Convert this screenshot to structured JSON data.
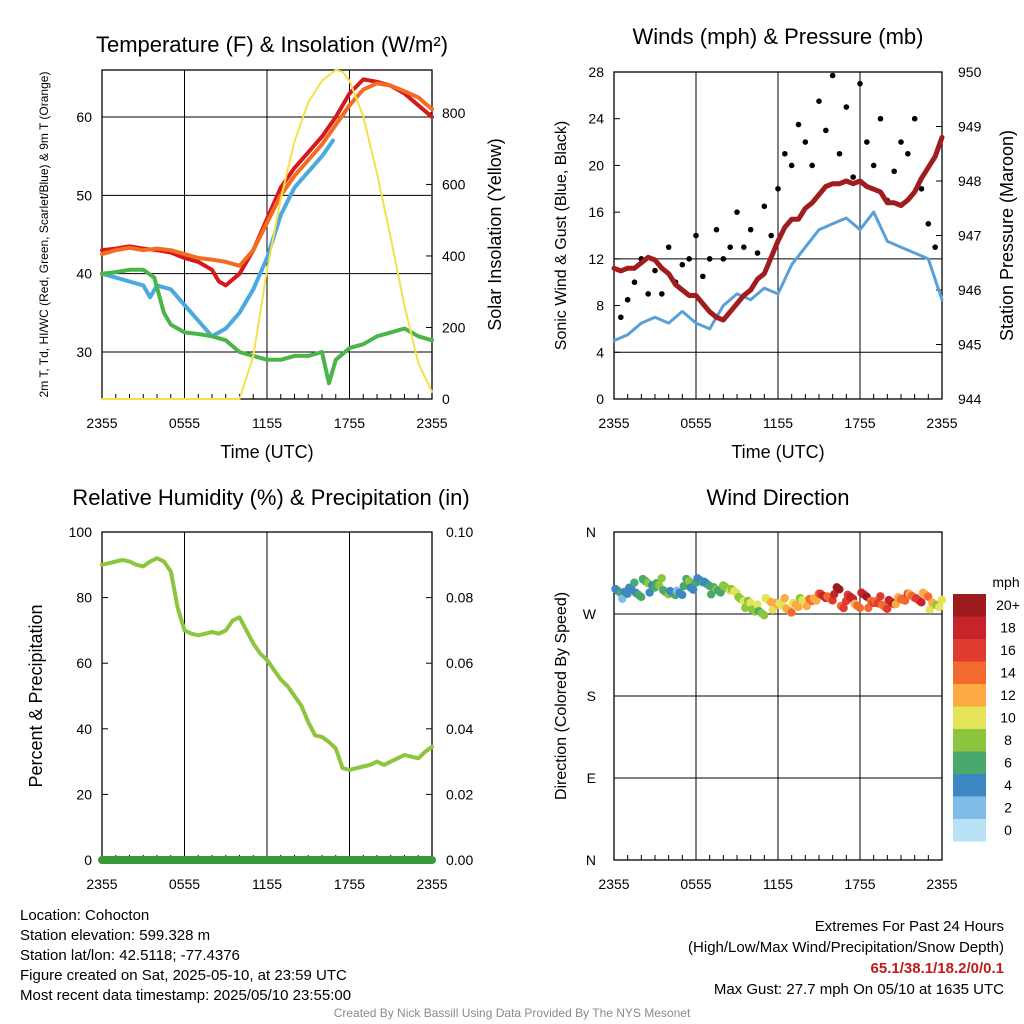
{
  "footer": {
    "location": "Location: Cohocton",
    "elevation": "Station elevation: 599.328 m",
    "latlon": "Station lat/lon: 42.5118; -77.4376",
    "created": "Figure created on Sat, 2025-05-10, at 23:59 UTC",
    "recent": "Most recent data timestamp: 2025/05/10 23:55:00",
    "extremes_title": "Extremes For Past 24 Hours",
    "extremes_sub": "(High/Low/Max Wind/Precipitation/Snow Depth)",
    "extremes_values": "65.1/38.1/18.2/0/0.1",
    "max_gust": "Max Gust: 27.7 mph On 05/10 at 1635 UTC",
    "credit": "Created By Nick Bassill Using Data Provided By The NYS Mesonet"
  },
  "colors": {
    "temp": "#d7191c",
    "wc": "#f26d21",
    "dew": "#4aa9e0",
    "rh_green": "#4cb548",
    "solar": "#f5e04b",
    "wind": "#5aa0d8",
    "gust": "#000000",
    "pressure": "#a11d1d",
    "rh": "#8cc63f",
    "precip": "#3a9a3a",
    "grid": "#000000"
  },
  "chart_data": [
    {
      "type": "line",
      "title": "Temperature (F) & Insolation (W/m²)",
      "xlabel": "Time (UTC)",
      "ylabel": "2m T, Td, HI/WC (Red, Green, Scarlet/Blue) & 9m T (Orange)",
      "y2label": "Solar Insolation (Yellow)",
      "xticks": [
        "2355",
        "0555",
        "1155",
        "1755",
        "2355"
      ],
      "ylim": [
        24,
        66
      ],
      "yticks": [
        30,
        40,
        50,
        60
      ],
      "y2lim": [
        0,
        920
      ],
      "y2ticks": [
        0,
        200,
        400,
        600,
        800
      ],
      "x_hours": [
        0,
        24
      ],
      "series": [
        {
          "role": "2m T",
          "axis": "left",
          "color": "#d7191c",
          "x": [
            0,
            1,
            2,
            3,
            4,
            5,
            6,
            7,
            8,
            8.5,
            9,
            10,
            11,
            12,
            13,
            14,
            15,
            16,
            17,
            18,
            19,
            20,
            21,
            22,
            23,
            24
          ],
          "y": [
            43,
            43.2,
            43.5,
            43.2,
            43,
            42.7,
            42,
            41.5,
            40.5,
            39,
            38.5,
            40,
            43,
            47,
            51,
            53.5,
            55.5,
            57.5,
            60,
            63,
            64.8,
            64.5,
            64,
            63,
            61.5,
            60
          ]
        },
        {
          "role": "9m T",
          "axis": "left",
          "color": "#f26d21",
          "x": [
            0,
            1,
            2,
            3,
            4,
            5,
            6,
            7,
            8,
            9,
            10,
            11,
            12,
            13,
            14,
            15,
            16,
            17,
            18,
            19,
            20,
            21,
            22,
            23,
            24
          ],
          "y": [
            42.5,
            43,
            43.3,
            43,
            43.2,
            43,
            42.5,
            42,
            41.8,
            41.5,
            41,
            43,
            46.5,
            50,
            52.5,
            54.5,
            56.5,
            59,
            61.5,
            63.5,
            64.3,
            64,
            63.3,
            62.5,
            61
          ]
        },
        {
          "role": "HI/WC",
          "axis": "left",
          "color": "#4aa9e0",
          "x": [
            0,
            1,
            2,
            3,
            3.5,
            4,
            5,
            6,
            7,
            8,
            9,
            10,
            11,
            12,
            13,
            14,
            15,
            16,
            16.8
          ],
          "y": [
            40,
            39.5,
            39,
            38.5,
            37,
            38.5,
            38,
            36,
            34,
            32,
            33,
            35,
            38,
            42,
            47.5,
            51,
            53,
            55,
            57
          ]
        },
        {
          "role": "2m Td",
          "axis": "left",
          "color": "#4cb548",
          "x": [
            0,
            1,
            2,
            3,
            3.8,
            4.5,
            5,
            6,
            7,
            8,
            9,
            10,
            11,
            12,
            13,
            14,
            15,
            16,
            16.5,
            17,
            18,
            19,
            20,
            21,
            22,
            23,
            24
          ],
          "y": [
            40,
            40.2,
            40.5,
            40.5,
            39.5,
            35,
            33.5,
            32.5,
            32.3,
            32,
            31.5,
            30,
            29.5,
            29,
            29,
            29.5,
            29.5,
            30,
            26,
            29,
            30.5,
            31,
            32,
            32.5,
            33,
            32,
            31.5
          ]
        },
        {
          "role": "Solar Insolation",
          "axis": "right",
          "color": "#f5e04b",
          "x": [
            0,
            1,
            2,
            3,
            4,
            5,
            6,
            7,
            8,
            9,
            10,
            11,
            12,
            13,
            14,
            15,
            16,
            17,
            17.5,
            18,
            19,
            20,
            21,
            22,
            23,
            24
          ],
          "y": [
            0,
            0,
            0,
            0,
            0,
            0,
            0,
            0,
            0,
            0,
            0,
            120,
            360,
            560,
            720,
            830,
            890,
            920,
            915,
            890,
            790,
            630,
            450,
            260,
            100,
            20
          ]
        }
      ]
    },
    {
      "type": "line",
      "title": "Winds (mph) & Pressure (mb)",
      "xlabel": "Time (UTC)",
      "ylabel": "Sonic Wind & Gust (Blue, Black)",
      "y2label": "Station Pressure (Maroon)",
      "xticks": [
        "2355",
        "0555",
        "1155",
        "1755",
        "2355"
      ],
      "ylim": [
        0,
        28
      ],
      "yticks": [
        0,
        4,
        8,
        12,
        16,
        20,
        24,
        28
      ],
      "y2lim": [
        944,
        950
      ],
      "y2ticks": [
        944,
        945,
        946,
        947,
        948,
        949,
        950
      ],
      "x_hours": [
        0,
        24
      ],
      "series": [
        {
          "role": "Sonic Wind",
          "axis": "left",
          "color": "#5aa0d8",
          "x": [
            0,
            1,
            2,
            3,
            4,
            5,
            6,
            7,
            8,
            9,
            10,
            11,
            12,
            13,
            14,
            15,
            16,
            17,
            18,
            19,
            20,
            21,
            22,
            23,
            24
          ],
          "y": [
            5,
            5.5,
            6.5,
            7,
            6.5,
            7.5,
            6.5,
            6,
            8,
            9,
            8.5,
            9.5,
            9,
            11.5,
            13,
            14.5,
            15,
            15.5,
            14.5,
            16,
            13.5,
            13,
            12.5,
            12,
            8.5
          ]
        },
        {
          "role": "Gust",
          "axis": "left",
          "color": "#000000",
          "marker": "dot",
          "x": [
            0.5,
            1,
            1.5,
            2,
            2.5,
            3,
            3.5,
            4,
            4.5,
            5,
            5.5,
            6,
            6.5,
            7,
            7.5,
            8,
            8.5,
            9,
            9.5,
            10,
            10.5,
            11,
            11.5,
            12,
            12.5,
            13,
            13.5,
            14,
            14.5,
            15,
            15.5,
            16,
            16.5,
            17,
            17.5,
            18,
            18.5,
            19,
            19.5,
            20,
            20.5,
            21,
            21.5,
            22,
            22.5,
            23,
            23.5
          ],
          "y": [
            7,
            8.5,
            10,
            12,
            9,
            11,
            9,
            13,
            10,
            11.5,
            12,
            14,
            10.5,
            12,
            14.5,
            12,
            13,
            16,
            13,
            14.5,
            12.5,
            16.5,
            14,
            18,
            21,
            20,
            23.5,
            22,
            20,
            25.5,
            23,
            27.7,
            21,
            25,
            19,
            27,
            22,
            20,
            24,
            17,
            19.5,
            22,
            21,
            24,
            18,
            15,
            13
          ]
        },
        {
          "role": "Station Pressure",
          "axis": "right",
          "color": "#a11d1d",
          "x": [
            0,
            0.5,
            1,
            1.5,
            2,
            2.5,
            3,
            3.5,
            4,
            4.5,
            5,
            5.5,
            6,
            6.5,
            7,
            7.5,
            8,
            8.5,
            9,
            9.5,
            10,
            10.5,
            11,
            11.5,
            12,
            12.5,
            13,
            13.5,
            14,
            14.5,
            15,
            15.5,
            16,
            16.5,
            17,
            17.5,
            18,
            18.5,
            19,
            19.5,
            20,
            20.5,
            21,
            21.5,
            22,
            22.5,
            23,
            23.5,
            24
          ],
          "y": [
            946.4,
            946.35,
            946.4,
            946.4,
            946.5,
            946.6,
            946.55,
            946.4,
            946.3,
            946.1,
            946.0,
            945.9,
            945.9,
            945.75,
            945.6,
            945.5,
            945.45,
            945.6,
            945.75,
            945.9,
            946.0,
            946.2,
            946.3,
            946.6,
            946.9,
            947.15,
            947.3,
            947.3,
            947.5,
            947.6,
            947.75,
            947.9,
            947.95,
            947.95,
            948.0,
            947.95,
            948.0,
            947.9,
            947.85,
            947.8,
            947.6,
            947.6,
            947.55,
            947.65,
            947.8,
            948.05,
            948.25,
            948.45,
            948.8
          ]
        }
      ]
    },
    {
      "type": "line",
      "title": "Relative Humidity (%) & Precipitation (in)",
      "ylabel": "Percent & Precipitation",
      "xticks": [
        "2355",
        "0555",
        "1155",
        "1755",
        "2355"
      ],
      "ylim": [
        0,
        100
      ],
      "yticks": [
        0,
        20,
        40,
        60,
        80,
        100
      ],
      "y2lim": [
        0,
        0.1
      ],
      "y2ticks": [
        "0.00",
        "0.02",
        "0.04",
        "0.06",
        "0.08",
        "0.10"
      ],
      "x_hours": [
        0,
        24
      ],
      "series": [
        {
          "role": "Relative Humidity",
          "axis": "left",
          "color": "#8cc63f",
          "x": [
            0,
            0.5,
            1,
            1.5,
            2,
            2.5,
            3,
            3.5,
            4,
            4.5,
            5,
            5.5,
            6,
            6.5,
            7,
            7.5,
            8,
            8.5,
            9,
            9.5,
            10,
            10.5,
            11,
            11.5,
            12,
            12.5,
            13,
            13.5,
            14,
            14.5,
            15,
            15.5,
            16,
            16.5,
            17,
            17.5,
            18,
            18.5,
            19,
            19.5,
            20,
            20.5,
            21,
            21.5,
            22,
            22.5,
            23,
            23.5,
            24
          ],
          "y": [
            90,
            90.5,
            91,
            91.5,
            91,
            90,
            89.5,
            91,
            92,
            91,
            88,
            77,
            70,
            69,
            68.5,
            69,
            69.5,
            69,
            70,
            73,
            74,
            70,
            66,
            63,
            61,
            58,
            55,
            53,
            50,
            47,
            42,
            38,
            37.5,
            36,
            34,
            28,
            27.5,
            28,
            28.5,
            29,
            30,
            29,
            30,
            31,
            32,
            31.5,
            31,
            33,
            34.5
          ]
        },
        {
          "role": "Precipitation",
          "axis": "right",
          "color": "#3a9a3a",
          "x": [
            0,
            24
          ],
          "y": [
            0,
            0
          ]
        }
      ]
    },
    {
      "type": "scatter",
      "title": "Wind Direction",
      "ylabel": "Direction (Colored By Speed)",
      "xticks": [
        "2355",
        "0555",
        "1155",
        "1755",
        "2355"
      ],
      "yticks": [
        "N",
        "E",
        "S",
        "W",
        "N"
      ],
      "ylim": [
        0,
        360
      ],
      "x_hours": [
        0,
        24
      ],
      "legend_title": "mph",
      "colorbar": {
        "labels": [
          "20+",
          "18",
          "16",
          "14",
          "12",
          "10",
          "8",
          "6",
          "4",
          "2",
          "0"
        ],
        "colors": [
          "#9b1b1e",
          "#c6232a",
          "#e03b30",
          "#f26a2d",
          "#fbaa44",
          "#e4e458",
          "#8cc63f",
          "#49a86c",
          "#3f87c3",
          "#7fbde7",
          "#b9e2f6"
        ]
      },
      "series": [
        {
          "role": "Wind Direction",
          "marker": "dot",
          "x": [
            0.3,
            0.8,
            1.3,
            1.8,
            2.3,
            2.8,
            3.3,
            3.8,
            4.3,
            4.8,
            5.3,
            5.8,
            6.3,
            6.8,
            7.3,
            7.8,
            8.3,
            8.8,
            9.3,
            9.8,
            10.3,
            10.8,
            11.3,
            11.8,
            12.3,
            12.8,
            13.3,
            13.8,
            14.3,
            14.8,
            15.3,
            15.8,
            16.3,
            16.8,
            17.3,
            17.8,
            18.3,
            18.8,
            19.3,
            19.8,
            20.3,
            20.8,
            21.3,
            21.8,
            22.3,
            22.8,
            23.3,
            23.8
          ],
          "y": [
            293,
            290,
            300,
            292,
            305,
            298,
            306,
            296,
            293,
            291,
            304,
            300,
            308,
            302,
            296,
            298,
            300,
            295,
            284,
            280,
            276,
            272,
            284,
            279,
            284,
            276,
            280,
            283,
            282,
            288,
            291,
            286,
            296,
            281,
            291,
            279,
            289,
            280,
            285,
            279,
            282,
            285,
            289,
            292,
            285,
            289,
            278,
            281
          ],
          "speed": [
            4,
            3,
            4,
            5,
            6,
            4,
            7,
            6,
            4,
            3,
            6,
            4,
            4,
            4,
            6,
            6,
            8,
            9,
            8,
            8,
            8,
            7,
            10,
            11,
            10,
            12,
            11,
            9,
            13,
            12,
            17,
            14,
            19,
            15,
            17,
            13,
            18,
            14,
            15,
            14,
            18,
            12,
            14,
            13,
            16,
            12,
            11,
            9
          ]
        }
      ]
    }
  ]
}
